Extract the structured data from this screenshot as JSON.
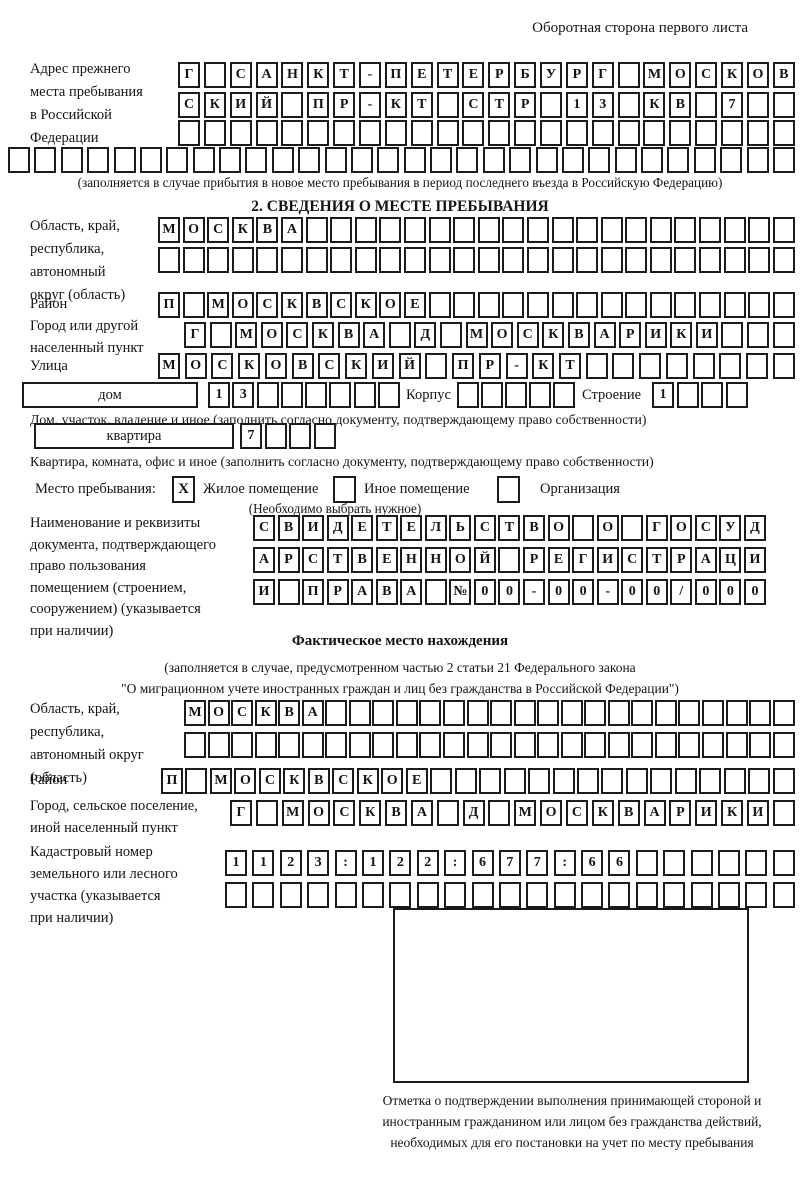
{
  "header": {
    "note": "Оборотная сторона первого листа"
  },
  "prev_address": {
    "label": "Адрес прежнего\nместа пребывания\nв Российской\nФедерации",
    "row1": {
      "n": 24,
      "text": "Г САНКТ-ПЕТЕРБУРГ МОСКОВ"
    },
    "row2": {
      "n": 24,
      "text": "СКИЙ ПР-КТ СТР 13 КВ 7"
    },
    "row3": {
      "n": 24,
      "text": ""
    },
    "row4": {
      "n": 30,
      "text": ""
    },
    "note": "(заполняется в случае прибытия в новое место пребывания в период последнего въезда в Российскую Федерацию)"
  },
  "section2": {
    "title": "2. СВЕДЕНИЯ О МЕСТЕ ПРЕБЫВАНИЯ",
    "oblast": {
      "label": "Область, край,\nреспублика,\nавтономный\nокруг (область)",
      "row1": {
        "n": 26,
        "text": "МОСКВА"
      },
      "row2": {
        "n": 26,
        "text": ""
      }
    },
    "rayon": {
      "label": "Район",
      "row": {
        "n": 26,
        "text": "П МОСКВСКОЕ"
      }
    },
    "gorod": {
      "label": "Город или другой\nнаселенный пункт",
      "row": {
        "n": 24,
        "text": "Г МОСКВА Д МОСКВАРИКИ"
      }
    },
    "ulitsa": {
      "label": "Улица",
      "row": {
        "n": 24,
        "text": "МОСКОВСКИЙ ПР-КТ"
      }
    },
    "dom": {
      "box_label": "дом",
      "cells1": {
        "n": 8,
        "text": "13"
      },
      "korpus_label": "Корпус",
      "cells2": {
        "n": 5,
        "text": ""
      },
      "stroenie_label": "Строение",
      "cells3": {
        "n": 4,
        "text": "1"
      },
      "note": "Дом, участок, владение и иное (заполнить согласно документу, подтверждающему право собственности)"
    },
    "kvartira": {
      "box_label": "квартира",
      "cells": {
        "n": 4,
        "text": "7"
      },
      "note": "Квартира, комната, офис и иное (заполнить согласно документу, подтверждающему право собственности)"
    },
    "place_type": {
      "label": "Место пребывания:",
      "options": [
        {
          "label": "Жилое помещение",
          "mark": "X"
        },
        {
          "label": "Иное помещение",
          "mark": ""
        },
        {
          "label": "Организация",
          "mark": ""
        }
      ],
      "note": "(Необходимо выбрать нужное)"
    },
    "doc": {
      "label": "Наименование и реквизиты\nдокумента, подтверждающего\nправо пользования\nпомещением (строением,\nсооружением) (указывается\nпри наличии)",
      "row1": {
        "n": 21,
        "text": "СВИДЕТЕЛЬСТВО О ГОСУД"
      },
      "row2": {
        "n": 21,
        "text": "АРСТВЕННОЙ РЕГИСТРАЦИ"
      },
      "row3": {
        "n": 21,
        "text": "И ПРАВА №00-00-00/000"
      }
    }
  },
  "fact": {
    "title": "Фактическое место нахождения",
    "note": "(заполняется в случае, предусмотренном частью 2 статьи 21 Федерального закона\n\"О миграционном учете иностранных граждан и лиц без гражданства в Российской Федерации\")",
    "oblast": {
      "label": "Область, край,\nреспублика,\nавтономный округ\n(область)",
      "row1": {
        "n": 26,
        "text": "МОСКВА"
      },
      "row2": {
        "n": 26,
        "text": ""
      }
    },
    "rayon": {
      "label": "Район",
      "row": {
        "n": 26,
        "text": "П МОСКВСКОЕ"
      }
    },
    "gorod": {
      "label": "Город, сельское поселение,\nиной населенный пункт",
      "row": {
        "n": 22,
        "text": "Г МОСКВА Д МОСКВАРИКИ"
      }
    },
    "kadastr": {
      "label": "Кадастровый номер\nземельного или лесного\nучастка (указывается\nпри наличии)",
      "row1": {
        "n": 21,
        "text": "1123:122:677:66"
      },
      "row2": {
        "n": 21,
        "text": ""
      }
    }
  },
  "stamp": {
    "caption": "Отметка о подтверждении выполнения принимающей стороной и иностранным гражданином или лицом без гражданства действий, необходимых для его постановки на учет по месту пребывания"
  }
}
